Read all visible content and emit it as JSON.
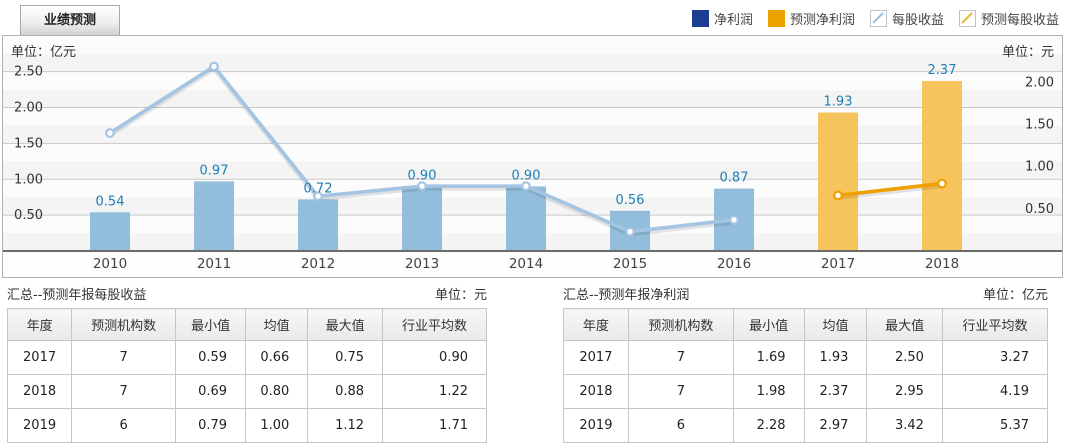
{
  "tab": {
    "label": "业绩预测"
  },
  "legend": {
    "items": [
      {
        "label": "净利润",
        "kind": "bar",
        "color": "#1c3d90"
      },
      {
        "label": "预测净利润",
        "kind": "bar",
        "color": "#eda200"
      },
      {
        "label": "每股收益",
        "kind": "line",
        "color": "#9cc0df"
      },
      {
        "label": "预测每股收益",
        "kind": "line",
        "color": "#edb63d"
      }
    ]
  },
  "chart_data": {
    "type": "bar+line",
    "categories": [
      "2010",
      "2011",
      "2012",
      "2013",
      "2014",
      "2015",
      "2016",
      "2017",
      "2018"
    ],
    "series": [
      {
        "name": "净利润",
        "kind": "bar",
        "axis": "left",
        "color": "#92bedc",
        "values": [
          0.54,
          0.97,
          0.72,
          0.9,
          0.9,
          0.56,
          0.87,
          null,
          null
        ]
      },
      {
        "name": "预测净利润",
        "kind": "bar",
        "axis": "left",
        "color": "#f6c45c",
        "values": [
          null,
          null,
          null,
          null,
          null,
          null,
          null,
          1.93,
          2.37
        ]
      },
      {
        "name": "每股收益",
        "kind": "line",
        "axis": "right",
        "color": "#a3c4e2",
        "values": [
          1.4,
          2.19,
          0.65,
          0.77,
          0.77,
          0.23,
          0.37,
          null,
          null
        ]
      },
      {
        "name": "预测每股收益",
        "kind": "line",
        "axis": "right",
        "color": "#ef9f00",
        "values": [
          null,
          null,
          null,
          null,
          null,
          null,
          null,
          0.66,
          0.8
        ]
      }
    ],
    "left_axis": {
      "unit": "单位：亿元",
      "ticks": [
        "0.50",
        "1.00",
        "1.50",
        "2.00",
        "2.50"
      ],
      "range": [
        0,
        2.76
      ]
    },
    "right_axis": {
      "unit": "单位：元",
      "ticks": [
        "0.50",
        "1.00",
        "1.50",
        "2.00"
      ],
      "range": [
        0,
        2.35
      ]
    },
    "value_label_color": "#1d7fb5",
    "grid": true,
    "legend_position": "top-right"
  },
  "tables": [
    {
      "title": "汇总--预测年报每股收益",
      "unit": "单位：元",
      "headers": [
        "年度",
        "预测机构数",
        "最小值",
        "均值",
        "最大值",
        "行业平均数"
      ],
      "rows": [
        [
          "2017",
          "7",
          "0.59",
          "0.66",
          "0.75",
          "0.90"
        ],
        [
          "2018",
          "7",
          "0.69",
          "0.80",
          "0.88",
          "1.22"
        ],
        [
          "2019",
          "6",
          "0.79",
          "1.00",
          "1.12",
          "1.71"
        ]
      ]
    },
    {
      "title": "汇总--预测年报净利润",
      "unit": "单位：亿元",
      "headers": [
        "年度",
        "预测机构数",
        "最小值",
        "均值",
        "最大值",
        "行业平均数"
      ],
      "rows": [
        [
          "2017",
          "7",
          "1.69",
          "1.93",
          "2.50",
          "3.27"
        ],
        [
          "2018",
          "7",
          "1.98",
          "2.37",
          "2.95",
          "4.19"
        ],
        [
          "2019",
          "6",
          "2.28",
          "2.97",
          "3.42",
          "5.37"
        ]
      ]
    }
  ]
}
